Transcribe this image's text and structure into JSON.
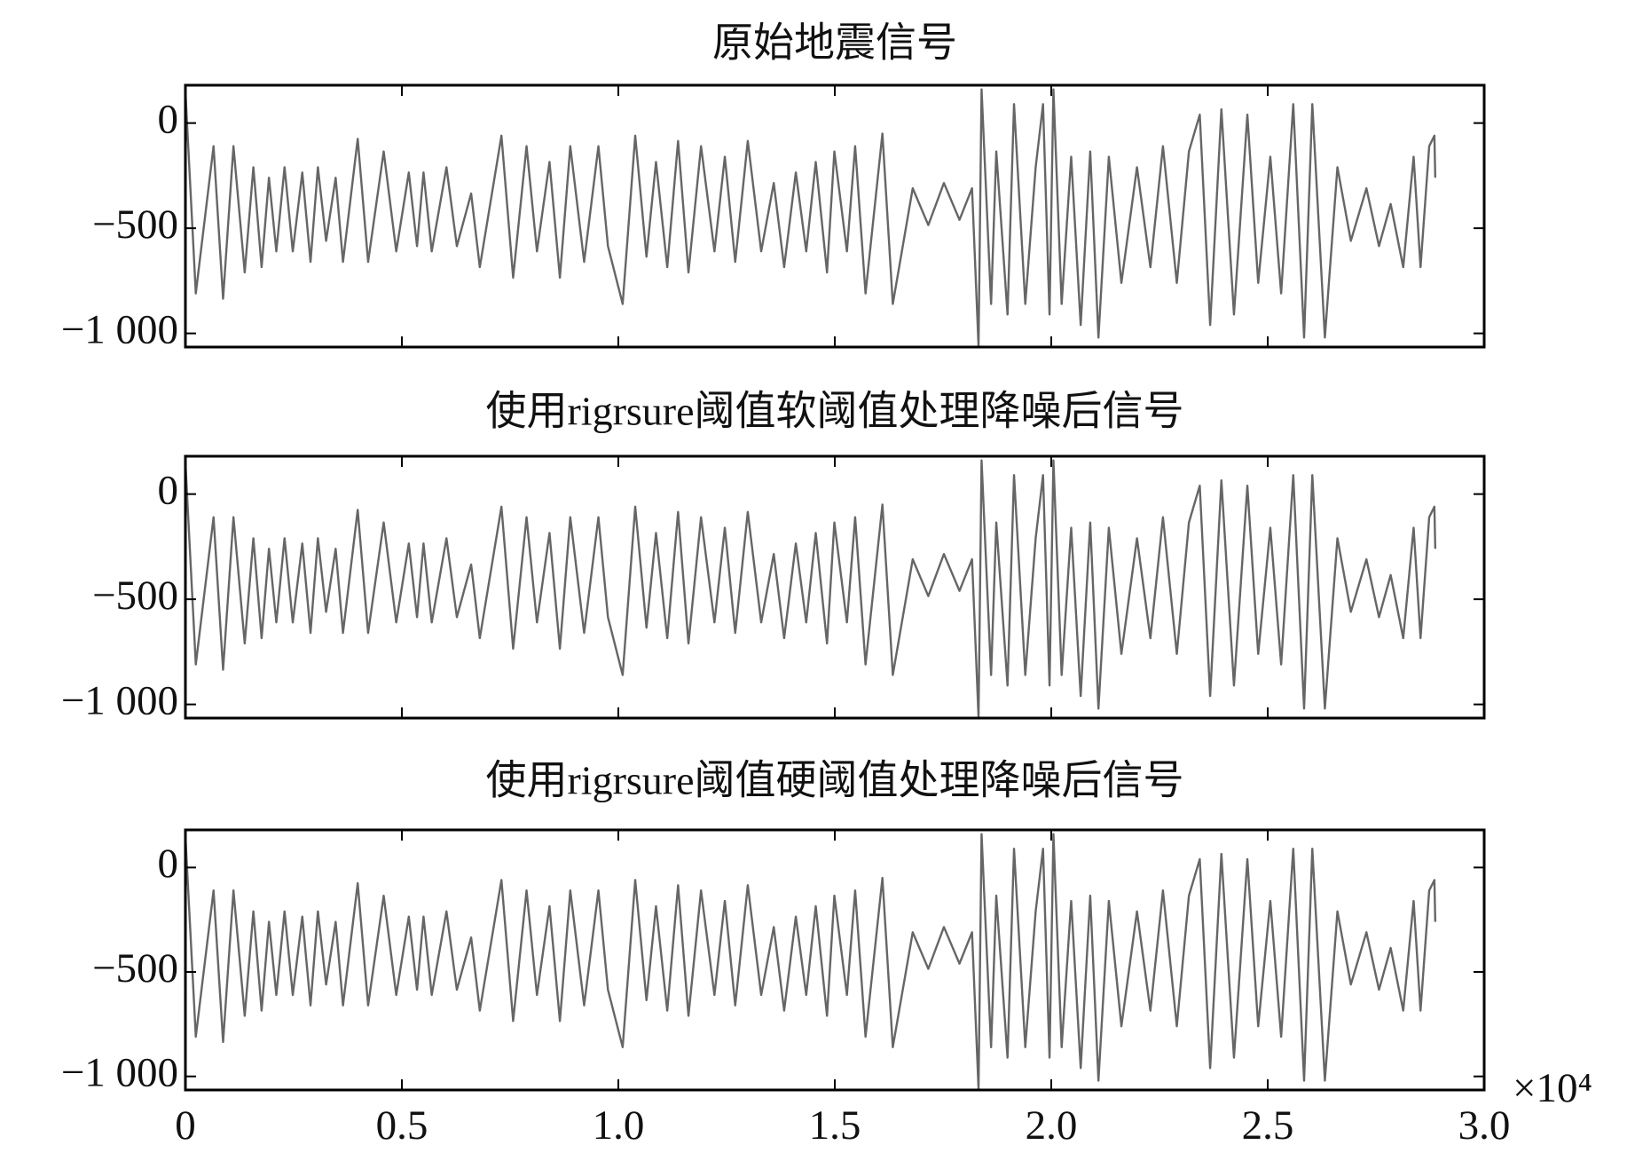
{
  "chart_data": [
    {
      "type": "line",
      "title": "原始地震信号",
      "x": [
        0,
        240,
        650,
        870,
        1110,
        1370,
        1570,
        1760,
        1930,
        2100,
        2290,
        2480,
        2700,
        2890,
        3060,
        3250,
        3470,
        3640,
        3980,
        4220,
        4580,
        4870,
        5160,
        5350,
        5500,
        5690,
        6030,
        6270,
        6600,
        6800,
        7300,
        7570,
        7880,
        8120,
        8410,
        8650,
        8890,
        9210,
        9540,
        9760,
        10100,
        10390,
        10650,
        10870,
        11130,
        11380,
        11620,
        11910,
        12220,
        12460,
        12700,
        12990,
        13300,
        13590,
        13830,
        14100,
        14340,
        14560,
        14820,
        14990,
        15280,
        15470,
        15710,
        16100,
        16340,
        16800,
        17160,
        17520,
        17880,
        18170,
        18320,
        18390,
        18610,
        18730,
        18990,
        19140,
        19400,
        19640,
        19810,
        19960,
        20050,
        20240,
        20460,
        20680,
        20900,
        21090,
        21330,
        21620,
        21980,
        22290,
        22580,
        22900,
        23180,
        23430,
        23670,
        23930,
        24220,
        24530,
        24780,
        25060,
        25310,
        25590,
        25840,
        26030,
        26320,
        26610,
        26920,
        27280,
        27570,
        27840,
        28130,
        28370,
        28530,
        28730,
        28850,
        28870
      ],
      "series": [
        {
          "name": "原始地震信号",
          "color": "#666666",
          "values": [
            150,
            -810,
            -110,
            -835,
            -110,
            -710,
            -210,
            -685,
            -260,
            -610,
            -210,
            -610,
            -235,
            -660,
            -210,
            -560,
            -260,
            -660,
            -75,
            -660,
            -135,
            -610,
            -235,
            -585,
            -235,
            -610,
            -210,
            -585,
            -335,
            -685,
            -60,
            -735,
            -110,
            -610,
            -185,
            -735,
            -110,
            -660,
            -110,
            -585,
            -860,
            -60,
            -635,
            -185,
            -685,
            -85,
            -710,
            -110,
            -610,
            -160,
            -660,
            -85,
            -610,
            -285,
            -685,
            -235,
            -610,
            -185,
            -710,
            -135,
            -610,
            -110,
            -810,
            -50,
            -860,
            -310,
            -485,
            -285,
            -460,
            -310,
            -1060,
            160,
            -860,
            -135,
            -910,
            90,
            -860,
            -210,
            90,
            -910,
            160,
            -860,
            -160,
            -960,
            -135,
            -1020,
            -160,
            -760,
            -210,
            -685,
            -110,
            -760,
            -135,
            40,
            -960,
            65,
            -910,
            40,
            -760,
            -160,
            -810,
            90,
            -1020,
            90,
            -1020,
            -210,
            -560,
            -310,
            -585,
            -385,
            -685,
            -160,
            -685,
            -110,
            -60,
            -260
          ]
        }
      ],
      "xlim": [
        0,
        30000
      ],
      "ylim": [
        -1065,
        180
      ],
      "xticks": [
        0,
        5000,
        10000,
        15000,
        20000,
        25000,
        30000
      ],
      "yticks": [
        {
          "value": 0,
          "label": "0"
        },
        {
          "value": -500,
          "label": "−500"
        },
        {
          "value": -1000,
          "label": "−1 000"
        }
      ],
      "xtick_labels": false
    },
    {
      "type": "line",
      "title": "使用rigrsure阈值软阈值处理降噪后信号",
      "x": [
        0,
        240,
        650,
        870,
        1110,
        1370,
        1570,
        1760,
        1930,
        2100,
        2290,
        2480,
        2700,
        2890,
        3060,
        3250,
        3470,
        3640,
        3980,
        4220,
        4580,
        4870,
        5160,
        5350,
        5500,
        5690,
        6030,
        6270,
        6600,
        6800,
        7300,
        7570,
        7880,
        8120,
        8410,
        8650,
        8890,
        9210,
        9540,
        9760,
        10100,
        10390,
        10650,
        10870,
        11130,
        11380,
        11620,
        11910,
        12220,
        12460,
        12700,
        12990,
        13300,
        13590,
        13830,
        14100,
        14340,
        14560,
        14820,
        14990,
        15280,
        15470,
        15710,
        16100,
        16340,
        16800,
        17160,
        17520,
        17880,
        18170,
        18320,
        18390,
        18610,
        18730,
        18990,
        19140,
        19400,
        19640,
        19810,
        19960,
        20050,
        20240,
        20460,
        20680,
        20900,
        21090,
        21330,
        21620,
        21980,
        22290,
        22580,
        22900,
        23180,
        23430,
        23670,
        23930,
        24220,
        24530,
        24780,
        25060,
        25310,
        25590,
        25840,
        26030,
        26320,
        26610,
        26920,
        27280,
        27570,
        27840,
        28130,
        28370,
        28530,
        28730,
        28850,
        28870
      ],
      "series": [
        {
          "name": "使用rigrsure阈值软阈值处理降噪后信号",
          "color": "#666666",
          "values": [
            150,
            -810,
            -110,
            -835,
            -110,
            -710,
            -210,
            -685,
            -260,
            -610,
            -210,
            -610,
            -235,
            -660,
            -210,
            -560,
            -260,
            -660,
            -75,
            -660,
            -135,
            -610,
            -235,
            -585,
            -235,
            -610,
            -210,
            -585,
            -335,
            -685,
            -60,
            -735,
            -110,
            -610,
            -185,
            -735,
            -110,
            -660,
            -110,
            -585,
            -860,
            -60,
            -635,
            -185,
            -685,
            -85,
            -710,
            -110,
            -610,
            -160,
            -660,
            -85,
            -610,
            -285,
            -685,
            -235,
            -610,
            -185,
            -710,
            -135,
            -610,
            -110,
            -810,
            -50,
            -860,
            -310,
            -485,
            -285,
            -460,
            -310,
            -1060,
            160,
            -860,
            -135,
            -910,
            90,
            -860,
            -210,
            90,
            -910,
            160,
            -860,
            -160,
            -960,
            -135,
            -1020,
            -160,
            -760,
            -210,
            -685,
            -110,
            -760,
            -135,
            40,
            -960,
            65,
            -910,
            40,
            -760,
            -160,
            -810,
            90,
            -1020,
            90,
            -1020,
            -210,
            -560,
            -310,
            -585,
            -385,
            -685,
            -160,
            -685,
            -110,
            -60,
            -260
          ]
        }
      ],
      "xlim": [
        0,
        30000
      ],
      "ylim": [
        -1065,
        180
      ],
      "xticks": [
        0,
        5000,
        10000,
        15000,
        20000,
        25000,
        30000
      ],
      "yticks": [
        {
          "value": 0,
          "label": "0"
        },
        {
          "value": -500,
          "label": "−500"
        },
        {
          "value": -1000,
          "label": "−1 000"
        }
      ],
      "xtick_labels": false
    },
    {
      "type": "line",
      "title": "使用rigrsure阈值硬阈值处理降噪后信号",
      "x": [
        0,
        240,
        650,
        870,
        1110,
        1370,
        1570,
        1760,
        1930,
        2100,
        2290,
        2480,
        2700,
        2890,
        3060,
        3250,
        3470,
        3640,
        3980,
        4220,
        4580,
        4870,
        5160,
        5350,
        5500,
        5690,
        6030,
        6270,
        6600,
        6800,
        7300,
        7570,
        7880,
        8120,
        8410,
        8650,
        8890,
        9210,
        9540,
        9760,
        10100,
        10390,
        10650,
        10870,
        11130,
        11380,
        11620,
        11910,
        12220,
        12460,
        12700,
        12990,
        13300,
        13590,
        13830,
        14100,
        14340,
        14560,
        14820,
        14990,
        15280,
        15470,
        15710,
        16100,
        16340,
        16800,
        17160,
        17520,
        17880,
        18170,
        18320,
        18390,
        18610,
        18730,
        18990,
        19140,
        19400,
        19640,
        19810,
        19960,
        20050,
        20240,
        20460,
        20680,
        20900,
        21090,
        21330,
        21620,
        21980,
        22290,
        22580,
        22900,
        23180,
        23430,
        23670,
        23930,
        24220,
        24530,
        24780,
        25060,
        25310,
        25590,
        25840,
        26030,
        26320,
        26610,
        26920,
        27280,
        27570,
        27840,
        28130,
        28370,
        28530,
        28730,
        28850,
        28870
      ],
      "series": [
        {
          "name": "使用rigrsure阈值硬阈值处理降噪后信号",
          "color": "#666666",
          "values": [
            150,
            -810,
            -110,
            -835,
            -110,
            -710,
            -210,
            -685,
            -260,
            -610,
            -210,
            -610,
            -235,
            -660,
            -210,
            -560,
            -260,
            -660,
            -75,
            -660,
            -135,
            -610,
            -235,
            -585,
            -235,
            -610,
            -210,
            -585,
            -335,
            -685,
            -60,
            -735,
            -110,
            -610,
            -185,
            -735,
            -110,
            -660,
            -110,
            -585,
            -860,
            -60,
            -635,
            -185,
            -685,
            -85,
            -710,
            -110,
            -610,
            -160,
            -660,
            -85,
            -610,
            -285,
            -685,
            -235,
            -610,
            -185,
            -710,
            -135,
            -610,
            -110,
            -810,
            -50,
            -860,
            -310,
            -485,
            -285,
            -460,
            -310,
            -1060,
            160,
            -860,
            -135,
            -910,
            90,
            -860,
            -210,
            90,
            -910,
            160,
            -860,
            -160,
            -960,
            -135,
            -1020,
            -160,
            -760,
            -210,
            -685,
            -110,
            -760,
            -135,
            40,
            -960,
            65,
            -910,
            40,
            -760,
            -160,
            -810,
            90,
            -1020,
            90,
            -1020,
            -210,
            -560,
            -310,
            -585,
            -385,
            -685,
            -160,
            -685,
            -110,
            -60,
            -260
          ]
        }
      ],
      "xlim": [
        0,
        30000
      ],
      "ylim": [
        -1065,
        180
      ],
      "xticks": [
        0,
        {
          "value": 5000,
          "label": "0.5"
        },
        {
          "value": 10000,
          "label": "1.0"
        },
        {
          "value": 15000,
          "label": "1.5"
        },
        {
          "value": 20000,
          "label": "2.0"
        },
        {
          "value": 25000,
          "label": "2.5"
        },
        {
          "value": 30000,
          "label": "3.0"
        }
      ],
      "yticks": [
        {
          "value": 0,
          "label": "0"
        },
        {
          "value": -500,
          "label": "−500"
        },
        {
          "value": -1000,
          "label": "−1 000"
        }
      ],
      "xtick_labels": true,
      "x_offset_label": "×10⁴"
    }
  ]
}
